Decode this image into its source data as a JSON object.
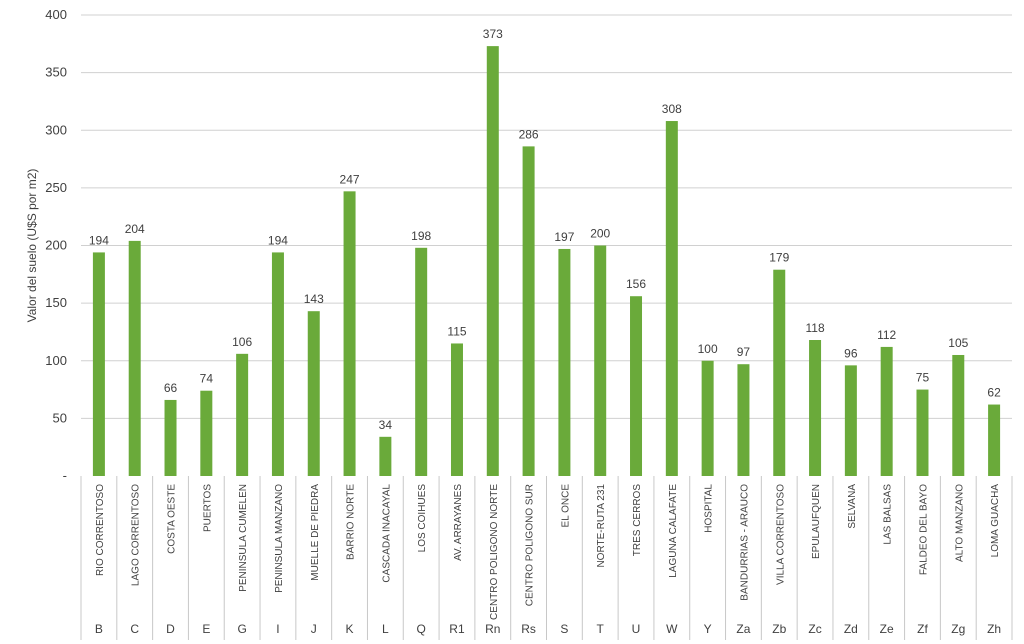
{
  "chart_data": {
    "type": "bar",
    "title": "",
    "ylabel": "Valor del suelo (U$S por m2)",
    "xlabel": "",
    "ylim": [
      0,
      400
    ],
    "yticks": [
      {
        "value": 0,
        "label": "-"
      },
      {
        "value": 50,
        "label": "50"
      },
      {
        "value": 100,
        "label": "100"
      },
      {
        "value": 150,
        "label": "150"
      },
      {
        "value": 200,
        "label": "200"
      },
      {
        "value": 250,
        "label": "250"
      },
      {
        "value": 300,
        "label": "300"
      },
      {
        "value": 350,
        "label": "350"
      },
      {
        "value": 400,
        "label": "400"
      }
    ],
    "grid": true,
    "bar_color": "#6aaa3a",
    "categories": [
      {
        "name": "RIO CORRENTOSO",
        "code": "B",
        "value": 194
      },
      {
        "name": "LAGO CORRENTOSO",
        "code": "C",
        "value": 204
      },
      {
        "name": "COSTA OESTE",
        "code": "D",
        "value": 66
      },
      {
        "name": "PUERTOS",
        "code": "E",
        "value": 74
      },
      {
        "name": "PENINSULA CUMELEN",
        "code": "G",
        "value": 106
      },
      {
        "name": "PENINSULA MANZANO",
        "code": "I",
        "value": 194
      },
      {
        "name": "MUELLE DE PIEDRA",
        "code": "J",
        "value": 143
      },
      {
        "name": "BARRIO NORTE",
        "code": "K",
        "value": 247
      },
      {
        "name": "CASCADA INACAYAL",
        "code": "L",
        "value": 34
      },
      {
        "name": "LOS COIHUES",
        "code": "Q",
        "value": 198
      },
      {
        "name": "AV. ARRAYANES",
        "code": "R1",
        "value": 115
      },
      {
        "name": "CENTRO POLIGONO NORTE",
        "code": "Rn",
        "value": 373
      },
      {
        "name": "CENTRO POLIGONO SUR",
        "code": "Rs",
        "value": 286
      },
      {
        "name": "EL ONCE",
        "code": "S",
        "value": 197
      },
      {
        "name": "NORTE-RUTA 231",
        "code": "T",
        "value": 200
      },
      {
        "name": "TRES CERROS",
        "code": "U",
        "value": 156
      },
      {
        "name": "LAGUNA CALAFATE",
        "code": "W",
        "value": 308
      },
      {
        "name": "HOSPITAL",
        "code": "Y",
        "value": 100
      },
      {
        "name": "BANDURRIAS - ARAUCO",
        "code": "Za",
        "value": 97
      },
      {
        "name": "VILLA CORRENTOSO",
        "code": "Zb",
        "value": 179
      },
      {
        "name": "EPULAUFQUEN",
        "code": "Zc",
        "value": 118
      },
      {
        "name": "SELVANA",
        "code": "Zd",
        "value": 96
      },
      {
        "name": "LAS BALSAS",
        "code": "Ze",
        "value": 112
      },
      {
        "name": "FALDEO DEL BAYO",
        "code": "Zf",
        "value": 75
      },
      {
        "name": "ALTO MANZANO",
        "code": "Zg",
        "value": 105
      },
      {
        "name": "LOMA GUACHA",
        "code": "Zh",
        "value": 62
      }
    ]
  }
}
